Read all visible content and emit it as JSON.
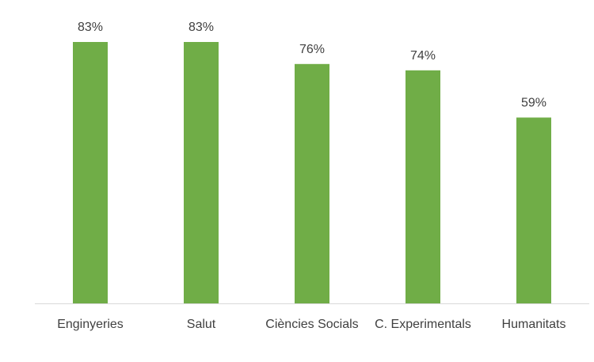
{
  "chart_data": {
    "type": "bar",
    "categories": [
      "Enginyeries",
      "Salut",
      "Ciències Socials",
      "C. Experimentals",
      "Humanitats"
    ],
    "values": [
      83,
      83,
      76,
      74,
      59
    ],
    "value_labels": [
      "83%",
      "83%",
      "76%",
      "74%",
      "59%"
    ],
    "title": "",
    "xlabel": "",
    "ylabel": "",
    "ylim": [
      0,
      90
    ],
    "grid": false,
    "legend": "none",
    "colors": {
      "bar": "#70AD47",
      "axis": "#D9D9D9",
      "text": "#404040"
    }
  }
}
